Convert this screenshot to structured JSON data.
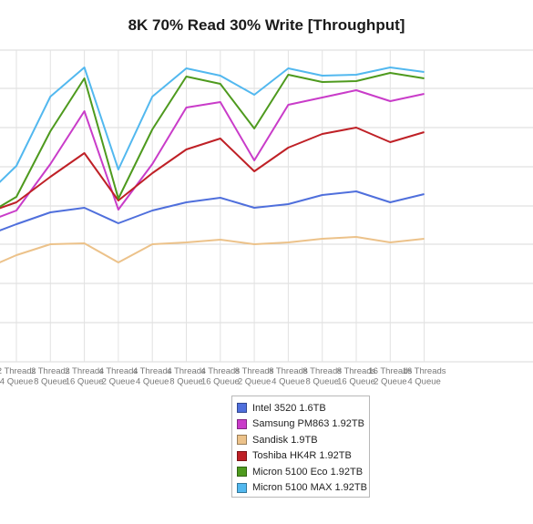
{
  "chart_data": {
    "type": "line",
    "title": "8K 70% Read 30% Write [Throughput]",
    "xlabel": "",
    "ylabel": "",
    "grid": true,
    "legend_position": "bottom",
    "categories": [
      [
        "2 Threads",
        "4 Queue"
      ],
      [
        "2 Threads",
        "8 Queue"
      ],
      [
        "2 Threads",
        "16 Queue"
      ],
      [
        "4 Threads",
        "2 Queue"
      ],
      [
        "4 Threads",
        "4 Queue"
      ],
      [
        "4 Threads",
        "8 Queue"
      ],
      [
        "4 Threads",
        "16 Queue"
      ],
      [
        "8 Threads",
        "2 Queue"
      ],
      [
        "8 Threads",
        "4 Queue"
      ],
      [
        "8 Threads",
        "8 Queue"
      ],
      [
        "8 Threads",
        "16 Queue"
      ],
      [
        "16 Threads",
        "2 Queue"
      ],
      [
        "16 Threads",
        "4 Queue"
      ]
    ],
    "leading_partial_values": {
      "Intel 3520 1.6TB": 260,
      "Samsung PM863 1.92TB": 245,
      "Sandisk 1.9TB": 296,
      "Toshiba HK4R 1.92TB": 235,
      "Micron 5100 Eco 1.92TB": 238,
      "Micron 5100 MAX 1.92TB": 218
    },
    "series": [
      {
        "name": "Intel 3520 1.6TB",
        "color": "#4f6fdc",
        "values": [
          246,
          233,
          228,
          245,
          231,
          222,
          217,
          228,
          224,
          214,
          210,
          222,
          213
        ]
      },
      {
        "name": "Samsung PM863 1.92TB",
        "color": "#c93cc9",
        "values": [
          231,
          180,
          122,
          230,
          180,
          118,
          112,
          176,
          115,
          107,
          99,
          111,
          103
        ]
      },
      {
        "name": "Sandisk 1.9TB",
        "color": "#ecc28a",
        "values": [
          280,
          268,
          267,
          288,
          268,
          266,
          263,
          268,
          266,
          262,
          260,
          266,
          262
        ]
      },
      {
        "name": "Toshiba HK4R 1.92TB",
        "color": "#bf2026",
        "values": [
          222,
          194,
          168,
          220,
          190,
          164,
          152,
          188,
          162,
          147,
          140,
          156,
          145
        ]
      },
      {
        "name": "Micron 5100 Eco 1.92TB",
        "color": "#4e9a1e",
        "values": [
          216,
          144,
          86,
          218,
          142,
          84,
          92,
          141,
          82,
          90,
          89,
          80,
          86
        ]
      },
      {
        "name": "Micron 5100 MAX 1.92TB",
        "color": "#52b8ef",
        "values": [
          182,
          106,
          74,
          186,
          106,
          75,
          83,
          104,
          75,
          83,
          82,
          74,
          79
        ]
      }
    ]
  }
}
